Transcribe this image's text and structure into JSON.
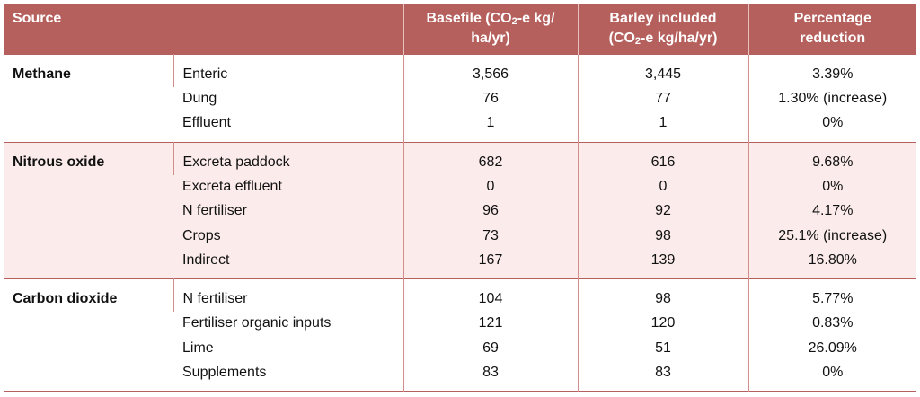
{
  "header": {
    "source": "Source",
    "basefile_line1": "Basefile (CO",
    "basefile_sub": "2",
    "basefile_line1b": "-e kg/",
    "basefile_line2": "ha/yr)",
    "barley_line1": "Barley included",
    "barley_line2a": "(CO",
    "barley_sub": "2",
    "barley_line2b": "-e kg/ha/yr)",
    "pct_line1": "Percentage",
    "pct_line2": "reduction"
  },
  "groups": [
    {
      "category": "Methane",
      "rows": [
        {
          "item": "Enteric",
          "basefile": "3,566",
          "barley": "3,445",
          "reduction": "3.39%"
        },
        {
          "item": "Dung",
          "basefile": "76",
          "barley": "77",
          "reduction": "1.30% (increase)"
        },
        {
          "item": "Effluent",
          "basefile": "1",
          "barley": "1",
          "reduction": "0%"
        }
      ]
    },
    {
      "category": "Nitrous oxide",
      "rows": [
        {
          "item": "Excreta paddock",
          "basefile": "682",
          "barley": "616",
          "reduction": "9.68%"
        },
        {
          "item": "Excreta effluent",
          "basefile": "0",
          "barley": "0",
          "reduction": "0%"
        },
        {
          "item": "N fertiliser",
          "basefile": "96",
          "barley": "92",
          "reduction": "4.17%"
        },
        {
          "item": "Crops",
          "basefile": "73",
          "barley": "98",
          "reduction": "25.1% (increase)"
        },
        {
          "item": "Indirect",
          "basefile": "167",
          "barley": "139",
          "reduction": "16.80%"
        }
      ]
    },
    {
      "category": "Carbon dioxide",
      "rows": [
        {
          "item": "N fertiliser",
          "basefile": "104",
          "barley": "98",
          "reduction": "5.77%"
        },
        {
          "item": "Fertiliser organic inputs",
          "basefile": "121",
          "barley": "120",
          "reduction": "0.83%"
        },
        {
          "item": "Lime",
          "basefile": "69",
          "barley": "51",
          "reduction": "26.09%"
        },
        {
          "item": "Supplements",
          "basefile": "83",
          "barley": "83",
          "reduction": "0%"
        }
      ]
    }
  ],
  "colors": {
    "header_bg": "#b5605d",
    "header_text": "#ffffff",
    "stripe_bg": "#fbeceb",
    "rule": "#b5605d"
  }
}
